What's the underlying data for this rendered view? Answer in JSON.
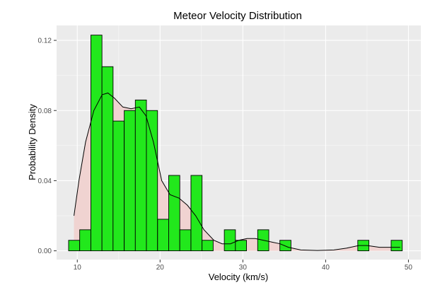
{
  "chart_data": {
    "type": "bar",
    "title": "Meteor Velocity Distribution",
    "xlabel": "Velocity (km/s)",
    "ylabel": "Probability Density",
    "xlim": [
      7.5,
      51.5
    ],
    "ylim": [
      -0.005,
      0.1285
    ],
    "x_ticks": [
      {
        "value": 10,
        "label": "10"
      },
      {
        "value": 20,
        "label": "20"
      },
      {
        "value": 30,
        "label": "30"
      },
      {
        "value": 40,
        "label": "40"
      },
      {
        "value": 50,
        "label": "50"
      }
    ],
    "y_ticks": [
      {
        "value": 0,
        "label": "0.00"
      },
      {
        "value": 0.04,
        "label": "0.04"
      },
      {
        "value": 0.08,
        "label": "0.08"
      },
      {
        "value": 0.12,
        "label": "0.12"
      }
    ],
    "bin_width": 1.343,
    "bins": [
      {
        "x0": 8.95,
        "density": 0.006
      },
      {
        "x0": 10.29,
        "density": 0.012
      },
      {
        "x0": 11.64,
        "density": 0.123
      },
      {
        "x0": 12.98,
        "density": 0.105
      },
      {
        "x0": 14.32,
        "density": 0.074
      },
      {
        "x0": 15.67,
        "density": 0.08
      },
      {
        "x0": 17.01,
        "density": 0.086
      },
      {
        "x0": 18.35,
        "density": 0.08
      },
      {
        "x0": 19.7,
        "density": 0.018
      },
      {
        "x0": 21.04,
        "density": 0.043
      },
      {
        "x0": 22.38,
        "density": 0.012
      },
      {
        "x0": 23.73,
        "density": 0.043
      },
      {
        "x0": 25.07,
        "density": 0.006
      },
      {
        "x0": 26.41,
        "density": 0.0
      },
      {
        "x0": 27.76,
        "density": 0.012
      },
      {
        "x0": 29.1,
        "density": 0.006
      },
      {
        "x0": 30.44,
        "density": 0.0
      },
      {
        "x0": 31.79,
        "density": 0.012
      },
      {
        "x0": 33.13,
        "density": 0.0
      },
      {
        "x0": 34.47,
        "density": 0.006
      },
      {
        "x0": 35.82,
        "density": 0.0
      },
      {
        "x0": 37.16,
        "density": 0.0
      },
      {
        "x0": 38.5,
        "density": 0.0
      },
      {
        "x0": 39.85,
        "density": 0.0
      },
      {
        "x0": 41.19,
        "density": 0.0
      },
      {
        "x0": 42.53,
        "density": 0.0
      },
      {
        "x0": 43.88,
        "density": 0.006
      },
      {
        "x0": 45.22,
        "density": 0.0
      },
      {
        "x0": 46.56,
        "density": 0.0
      },
      {
        "x0": 47.91,
        "density": 0.006
      }
    ],
    "density_curve": {
      "x": [
        9.6,
        10.2,
        11.0,
        12.0,
        13.0,
        13.7,
        14.5,
        15.5,
        16.5,
        17.5,
        18.3,
        19.2,
        20.2,
        21.2,
        22.3,
        23.3,
        24.3,
        25.3,
        26.5,
        27.5,
        28.5,
        29.5,
        30.5,
        31.5,
        32.5,
        33.5,
        34.5,
        35.5,
        37.0,
        39.0,
        41.0,
        42.5,
        44.0,
        45.0,
        46.5,
        48.0,
        49.0
      ],
      "y": [
        0.02,
        0.04,
        0.062,
        0.08,
        0.089,
        0.09,
        0.087,
        0.082,
        0.081,
        0.082,
        0.077,
        0.062,
        0.04,
        0.032,
        0.03,
        0.026,
        0.02,
        0.012,
        0.006,
        0.004,
        0.004,
        0.006,
        0.007,
        0.007,
        0.006,
        0.005,
        0.004,
        0.002,
        0.0005,
        0.0002,
        0.0005,
        0.0015,
        0.003,
        0.003,
        0.002,
        0.002,
        0.002
      ]
    },
    "colors": {
      "panel_background": "#ebebeb",
      "grid_major": "#ffffff",
      "bar_fill": "#22e81c",
      "bar_outline": "#000000",
      "density_fill": "#f0d3d1",
      "density_line": "#000000"
    },
    "grid": true,
    "legend": "none"
  }
}
